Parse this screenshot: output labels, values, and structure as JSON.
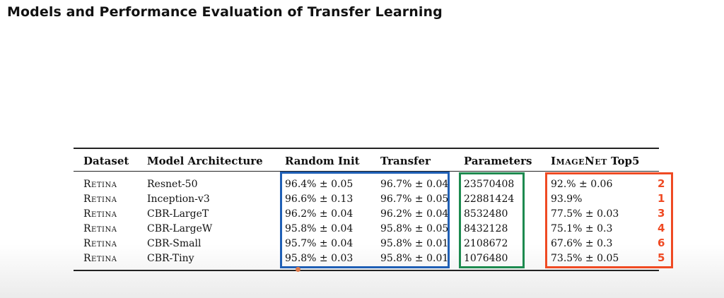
{
  "slide": {
    "title": "Models and Performance Evaluation of Transfer Learning"
  },
  "table": {
    "headers": {
      "dataset": "Dataset",
      "model": "Model Architecture",
      "random_init": "Random Init",
      "transfer": "Transfer",
      "parameters": "Parameters",
      "imagenet_name": "ImageNet",
      "imagenet_suffix": "Top5"
    },
    "rows": [
      {
        "dataset": "Retina",
        "model": "Resnet-50",
        "random_init": "96.4% ± 0.05",
        "transfer": "96.7% ± 0.04",
        "parameters": "23570408",
        "imagenet_top5": "92.% ± 0.06",
        "rank": "2"
      },
      {
        "dataset": "Retina",
        "model": "Inception-v3",
        "random_init": "96.6% ± 0.13",
        "transfer": "96.7% ± 0.05",
        "parameters": "22881424",
        "imagenet_top5": "93.9%",
        "rank": "1"
      },
      {
        "dataset": "Retina",
        "model": "CBR-LargeT",
        "random_init": "96.2% ± 0.04",
        "transfer": "96.2% ± 0.04",
        "parameters": "8532480",
        "imagenet_top5": "77.5% ± 0.03",
        "rank": "3"
      },
      {
        "dataset": "Retina",
        "model": "CBR-LargeW",
        "random_init": "95.8% ± 0.04",
        "transfer": "95.8% ± 0.05",
        "parameters": "8432128",
        "imagenet_top5": "75.1% ± 0.3",
        "rank": "4"
      },
      {
        "dataset": "Retina",
        "model": "CBR-Small",
        "random_init": "95.7% ± 0.04",
        "transfer": "95.8% ± 0.01",
        "parameters": "2108672",
        "imagenet_top5": "67.6% ± 0.3",
        "rank": "6"
      },
      {
        "dataset": "Retina",
        "model": "CBR-Tiny",
        "random_init": "95.8% ± 0.03",
        "transfer": "95.8% ± 0.01",
        "parameters": "1076480",
        "imagenet_top5": "73.5% ± 0.05",
        "rank": "5"
      }
    ]
  },
  "colors": {
    "accuracy_box": "#1f5fb5",
    "parameters_box": "#1d8a4f",
    "imagenet_box": "#ef4a23",
    "rank_text": "#ef4a23"
  }
}
